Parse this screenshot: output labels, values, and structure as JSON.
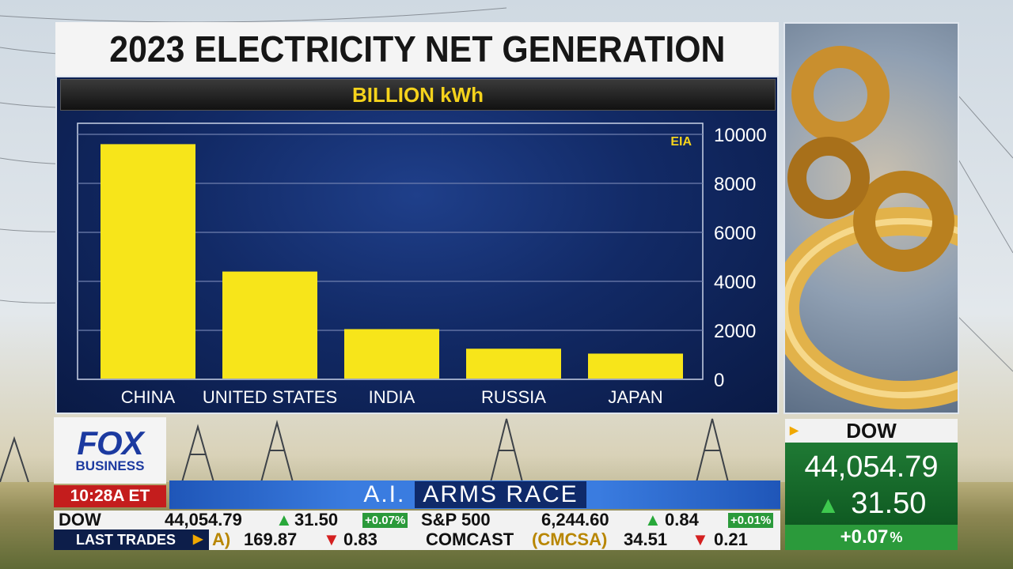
{
  "title": "2023 ELECTRICITY NET GENERATION",
  "chart_data": {
    "type": "bar",
    "title": "2023 ELECTRICITY NET GENERATION",
    "subtitle": "BILLION kWh",
    "source": "EIA",
    "categories": [
      "CHINA",
      "UNITED STATES",
      "INDIA",
      "RUSSIA",
      "JAPAN"
    ],
    "values": [
      9600,
      4400,
      2050,
      1250,
      1050
    ],
    "ylim": [
      0,
      10000
    ],
    "yticks": [
      0,
      2000,
      4000,
      6000,
      8000,
      10000
    ],
    "ytick_labels": [
      "0",
      "2000",
      "4000",
      "6000",
      "8000",
      "10000"
    ],
    "y_axis_side": "right",
    "grid": true,
    "colors": {
      "bar": "#f7e51a",
      "grid": "#6f7fae",
      "background": "#122a66",
      "label": "#ffffff",
      "source": "#f5d31c"
    }
  },
  "logo": {
    "line1": "FOX",
    "line2": "BUSINESS"
  },
  "clock": "10:28A ET",
  "banner": {
    "part1": "A.I.",
    "part2": "ARMS RACE"
  },
  "ticker_top": {
    "dow_label": "DOW",
    "dow_value": "44,054.79",
    "dow_change": "31.50",
    "dow_pct": "+0.07%",
    "sp_label": "S&P 500",
    "sp_value": "6,244.60",
    "sp_change": "0.84",
    "sp_pct": "+0.01%"
  },
  "ticker_bottom": {
    "label": "LAST TRADES",
    "item1_sym": "A)",
    "item1_price": "169.87",
    "item1_change": "0.83",
    "item2_name": "COMCAST",
    "item2_sym": "(CMCSA)",
    "item2_price": "34.51",
    "item2_change": "0.21"
  },
  "dow_box": {
    "label": "DOW",
    "value": "44,054.79",
    "change": "31.50",
    "pct": "+0.07",
    "pct_sign": "%"
  }
}
